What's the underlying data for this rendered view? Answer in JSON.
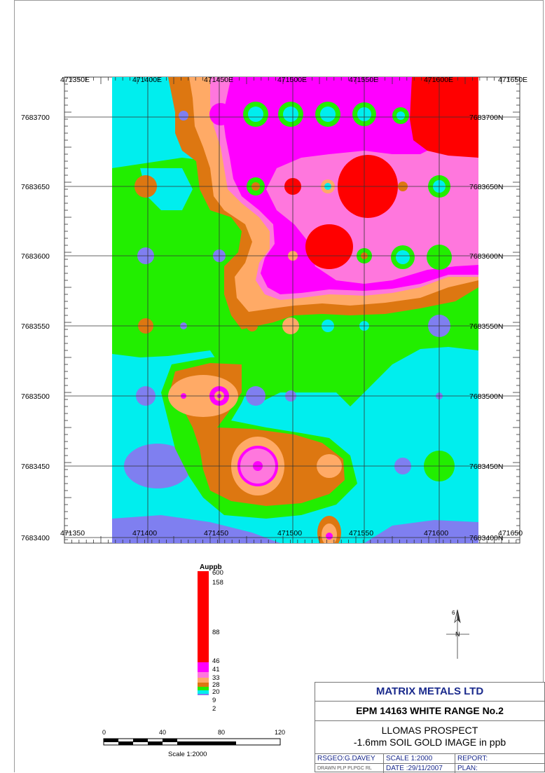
{
  "map": {
    "easting_ticks": [
      "471350E",
      "471400E",
      "471450E",
      "471500E",
      "471550E",
      "471600E",
      "471650E"
    ],
    "easting_bottom": [
      "471350",
      "471400",
      "471450",
      "471500",
      "471550",
      "471600",
      "471650"
    ],
    "northing_left": [
      "7683700",
      "7683650",
      "7683600",
      "7683550",
      "7683500",
      "7683450",
      "7683400"
    ],
    "northing_right": [
      "7683700N",
      "7683650N",
      "7683600N",
      "7683550N",
      "7683500N",
      "7683450N",
      "7683400N"
    ],
    "colors": {
      "red": "#ff0000",
      "magenta": "#ff00ff",
      "pink": "#ff77dd",
      "peach": "#ffaa66",
      "orange": "#dd7711",
      "green": "#22ee00",
      "cyan": "#00eeee",
      "blue": "#7f7ff0"
    }
  },
  "legend": {
    "title": "Auppb",
    "labels": [
      "600",
      "158",
      "88",
      "46",
      "41",
      "33",
      "28",
      "20",
      "9",
      "2"
    ]
  },
  "north_arrow": {
    "label": "N",
    "num": "6"
  },
  "scalebar": {
    "ticks": [
      "0",
      "40",
      "80",
      "120"
    ],
    "caption": "Scale 1:2000"
  },
  "titleblock": {
    "company": "MATRIX METALS LTD",
    "project": "EPM 14163 WHITE RANGE No.2",
    "line1": "LLOMAS PROSPECT",
    "line2": "-1.6mm SOIL GOLD IMAGE in ppb",
    "r1c1": "RSGEO:G.DAVEY",
    "r1c2": "SCALE 1:2000",
    "r1c3": "REPORT:",
    "r2c1": "DRAWN PLP PLPGC RL",
    "r2c2": "DATE :29/11/2007",
    "r2c3": "PLAN:"
  }
}
